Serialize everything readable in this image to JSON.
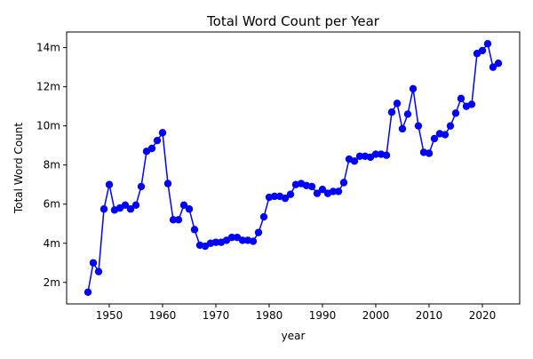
{
  "chart_data": {
    "type": "line",
    "title": "Total Word Count per Year",
    "xlabel": "year",
    "ylabel": "Total Word Count",
    "xlim": [
      1942,
      2027
    ],
    "ylim": [
      0.9,
      14.8
    ],
    "x_ticks": [
      1950,
      1960,
      1970,
      1980,
      1990,
      2000,
      2010,
      2020
    ],
    "x_tick_labels": [
      "1950",
      "1960",
      "1970",
      "1980",
      "1990",
      "2000",
      "2010",
      "2020"
    ],
    "y_ticks": [
      2,
      4,
      6,
      8,
      10,
      12,
      14
    ],
    "y_tick_labels": [
      "2m",
      "4m",
      "6m",
      "8m",
      "10m",
      "12m",
      "14m"
    ],
    "y_unit": "millions of words",
    "grid": false,
    "colors": {
      "series": "#0000ff",
      "axes": "#000000",
      "background": "#ffffff"
    },
    "series": [
      {
        "marker": "circle",
        "x": [
          1946,
          1947,
          1948,
          1949,
          1950,
          1951,
          1952,
          1953,
          1954,
          1955,
          1956,
          1957,
          1958,
          1959,
          1960,
          1961,
          1962,
          1963,
          1964,
          1965,
          1966,
          1967,
          1968,
          1969,
          1970,
          1971,
          1972,
          1973,
          1974,
          1975,
          1976,
          1977,
          1978,
          1979,
          1980,
          1981,
          1982,
          1983,
          1984,
          1985,
          1986,
          1987,
          1988,
          1989,
          1990,
          1991,
          1992,
          1993,
          1994,
          1995,
          1996,
          1997,
          1998,
          1999,
          2000,
          2001,
          2002,
          2003,
          2004,
          2005,
          2006,
          2007,
          2008,
          2009,
          2010,
          2011,
          2012,
          2013,
          2014,
          2015,
          2016,
          2017,
          2018,
          2019,
          2020,
          2021,
          2022,
          2023
        ],
        "values": [
          1.5,
          3.0,
          2.55,
          5.75,
          7.0,
          5.7,
          5.8,
          5.95,
          5.75,
          5.95,
          6.9,
          8.7,
          8.85,
          9.25,
          9.65,
          7.05,
          5.2,
          5.2,
          5.95,
          5.75,
          4.7,
          3.9,
          3.85,
          4.0,
          4.05,
          4.05,
          4.15,
          4.3,
          4.3,
          4.15,
          4.15,
          4.1,
          4.55,
          5.35,
          6.35,
          6.4,
          6.4,
          6.3,
          6.5,
          7.0,
          7.05,
          6.95,
          6.9,
          6.55,
          6.75,
          6.55,
          6.65,
          6.65,
          7.1,
          8.3,
          8.2,
          8.45,
          8.45,
          8.4,
          8.55,
          8.55,
          8.5,
          10.7,
          11.15,
          9.85,
          10.6,
          11.9,
          10.0,
          8.65,
          8.6,
          9.35,
          9.6,
          9.55,
          10.0,
          10.65,
          11.4,
          11.0,
          11.1,
          13.7,
          13.85,
          14.2,
          13.0,
          13.2
        ]
      }
    ]
  }
}
